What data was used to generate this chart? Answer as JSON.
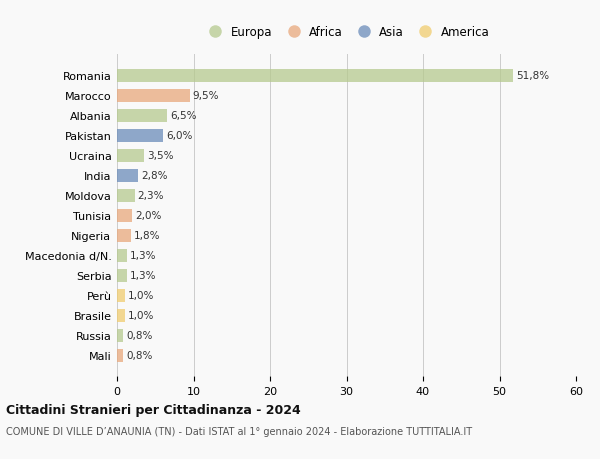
{
  "countries": [
    "Romania",
    "Marocco",
    "Albania",
    "Pakistan",
    "Ucraina",
    "India",
    "Moldova",
    "Tunisia",
    "Nigeria",
    "Macedonia d/N.",
    "Serbia",
    "Perù",
    "Brasile",
    "Russia",
    "Mali"
  ],
  "values": [
    51.8,
    9.5,
    6.5,
    6.0,
    3.5,
    2.8,
    2.3,
    2.0,
    1.8,
    1.3,
    1.3,
    1.0,
    1.0,
    0.8,
    0.8
  ],
  "labels": [
    "51,8%",
    "9,5%",
    "6,5%",
    "6,0%",
    "3,5%",
    "2,8%",
    "2,3%",
    "2,0%",
    "1,8%",
    "1,3%",
    "1,3%",
    "1,0%",
    "1,0%",
    "0,8%",
    "0,8%"
  ],
  "colors": [
    "#b5c98e",
    "#e8a87c",
    "#b5c98e",
    "#6b8cba",
    "#b5c98e",
    "#6b8cba",
    "#b5c98e",
    "#e8a87c",
    "#e8a87c",
    "#b5c98e",
    "#b5c98e",
    "#f0cc6e",
    "#f0cc6e",
    "#b5c98e",
    "#e8a87c"
  ],
  "legend_colors": {
    "Europa": "#b5c98e",
    "Africa": "#e8a87c",
    "Asia": "#6b8cba",
    "America": "#f0cc6e"
  },
  "xlim": [
    0,
    60
  ],
  "xticks": [
    0,
    10,
    20,
    30,
    40,
    50,
    60
  ],
  "title": "Cittadini Stranieri per Cittadinanza - 2024",
  "subtitle": "COMUNE DI VILLE D’ANAUNIA (TN) - Dati ISTAT al 1° gennaio 2024 - Elaborazione TUTTITALIA.IT",
  "bg_color": "#f9f9f9",
  "bar_alpha": 0.75
}
